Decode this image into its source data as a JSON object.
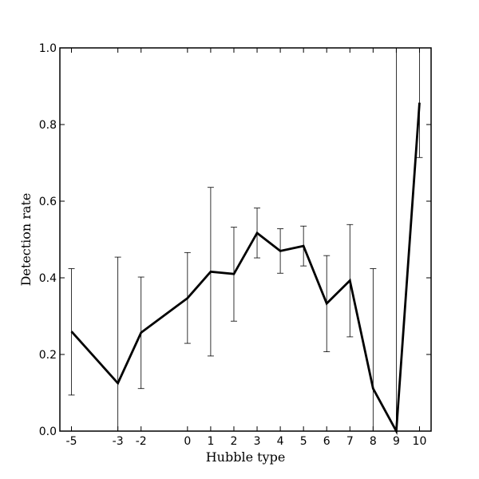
{
  "chart_data": {
    "type": "line",
    "title": "",
    "xlabel": "Hubble type",
    "ylabel": "Detection rate",
    "xlim": [
      -5.5,
      10.5
    ],
    "ylim": [
      0,
      1.0
    ],
    "grid": false,
    "x_ticks": [
      -5,
      -3,
      -2,
      0,
      1,
      2,
      3,
      4,
      5,
      6,
      7,
      8,
      9,
      10
    ],
    "x_tick_labels": [
      "-5",
      "-3",
      "-2",
      "0",
      "1",
      "2",
      "3",
      "4",
      "5",
      "6",
      "7",
      "8",
      "9",
      "10"
    ],
    "y_ticks": [
      0.0,
      0.2,
      0.4,
      0.6,
      0.8,
      1.0
    ],
    "y_tick_labels": [
      "0.0",
      "0.2",
      "0.4",
      "0.6",
      "0.8",
      "1.0"
    ],
    "series": [
      {
        "x": [
          -5,
          -3,
          -2,
          0,
          1,
          2,
          3,
          4,
          5,
          6,
          7,
          8,
          9,
          10
        ],
        "y": [
          0.26,
          0.125,
          0.257,
          0.347,
          0.416,
          0.41,
          0.517,
          0.47,
          0.483,
          0.333,
          0.393,
          0.111,
          0.0,
          0.857
        ],
        "y_err_low": [
          0.094,
          0.0,
          0.111,
          0.229,
          0.196,
          0.287,
          0.452,
          0.412,
          0.431,
          0.207,
          0.246,
          0.0,
          0.0,
          0.714
        ],
        "y_err_high": [
          0.424,
          0.454,
          0.402,
          0.466,
          0.636,
          0.532,
          0.582,
          0.528,
          0.535,
          0.458,
          0.539,
          0.424,
          1.0,
          1.0
        ]
      }
    ]
  }
}
